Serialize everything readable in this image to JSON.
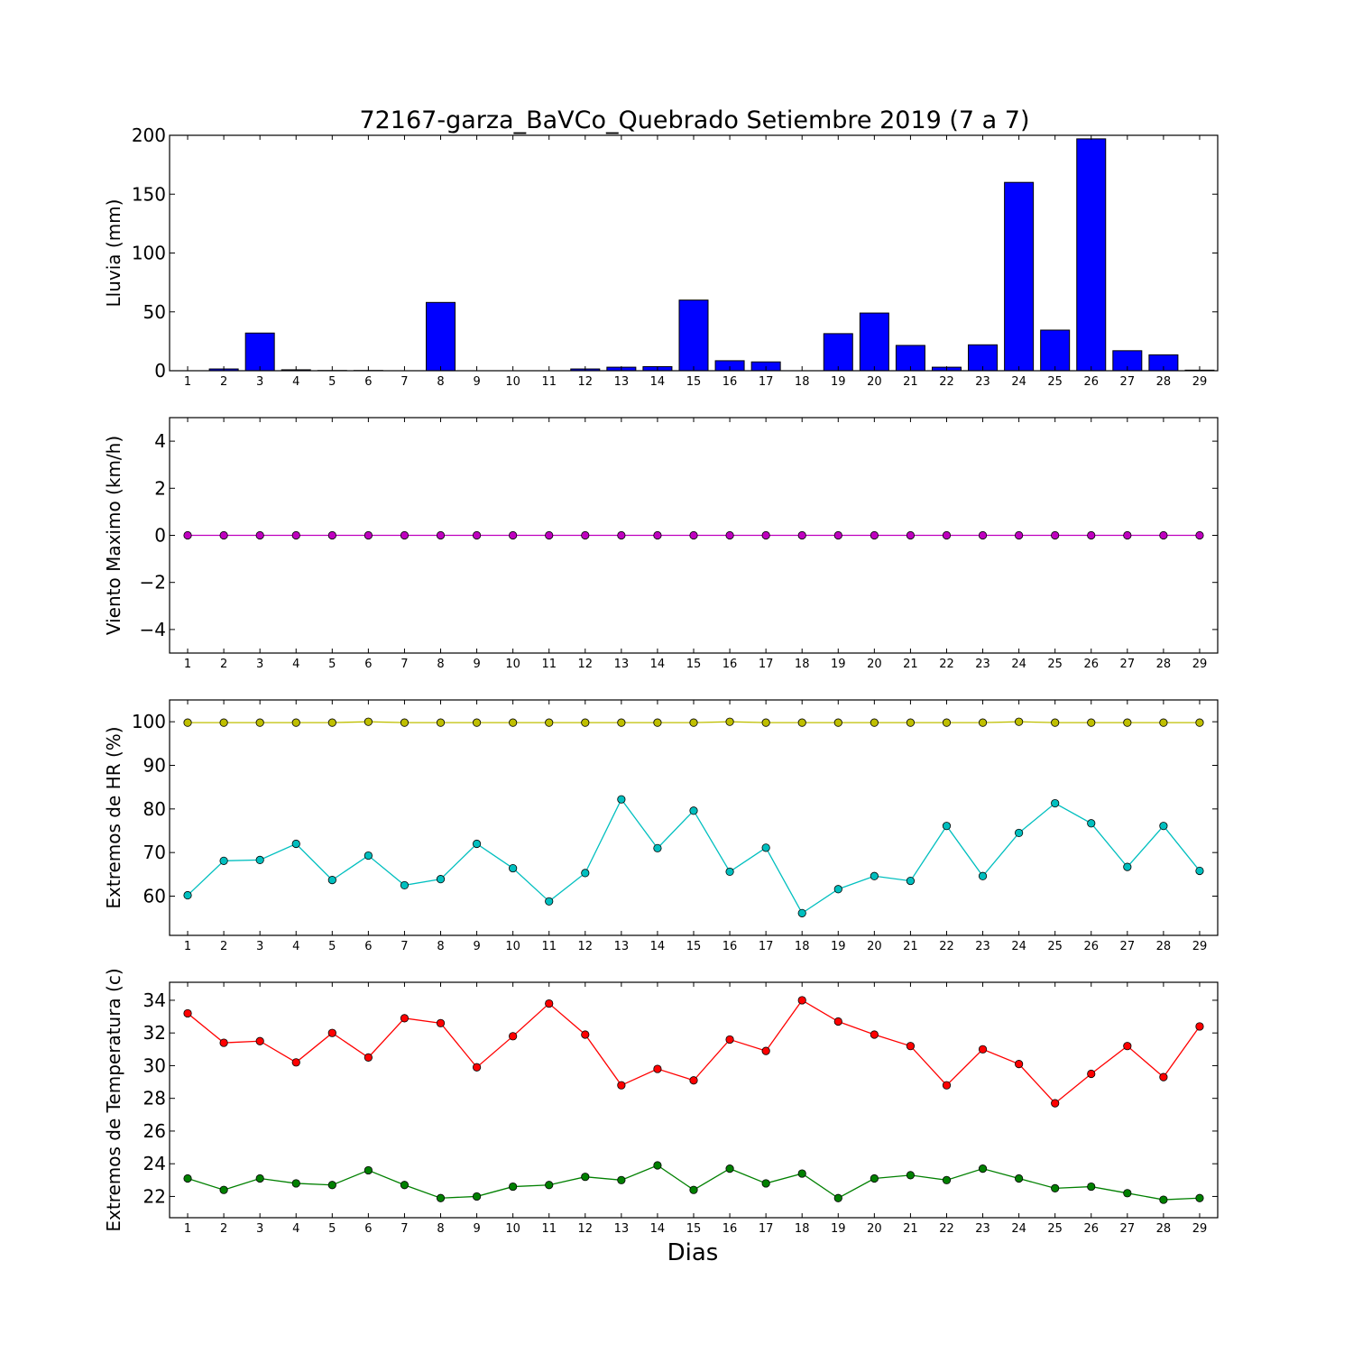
{
  "chart_data": [
    {
      "type": "bar",
      "title": "72167-garza_BaVCo_Quebrado Setiembre 2019  (7 a 7)",
      "ylabel": "Lluvia (mm)",
      "ylim": [
        0,
        200
      ],
      "yticks": [
        0,
        50,
        100,
        150,
        200
      ],
      "x": [
        1,
        2,
        3,
        4,
        5,
        6,
        7,
        8,
        9,
        10,
        11,
        12,
        13,
        14,
        15,
        16,
        17,
        18,
        19,
        20,
        21,
        22,
        23,
        24,
        25,
        26,
        27,
        28,
        29
      ],
      "series": [
        {
          "values": [
            0,
            1.5,
            32,
            0.8,
            0.2,
            0.2,
            0,
            58,
            0,
            0,
            0,
            1.5,
            3,
            3.5,
            60,
            8.5,
            7.5,
            0,
            31.5,
            49,
            21.5,
            3,
            22,
            160,
            34.5,
            197,
            17,
            13.5,
            0.5
          ],
          "color": "#0000ff"
        }
      ]
    },
    {
      "type": "line",
      "ylabel": "Viento Maximo (km/h)",
      "ylim": [
        -5,
        5
      ],
      "yticks": [
        -4,
        -2,
        0,
        2,
        4
      ],
      "x": [
        1,
        2,
        3,
        4,
        5,
        6,
        7,
        8,
        9,
        10,
        11,
        12,
        13,
        14,
        15,
        16,
        17,
        18,
        19,
        20,
        21,
        22,
        23,
        24,
        25,
        26,
        27,
        28,
        29
      ],
      "series": [
        {
          "values": [
            0,
            0,
            0,
            0,
            0,
            0,
            0,
            0,
            0,
            0,
            0,
            0,
            0,
            0,
            0,
            0,
            0,
            0,
            0,
            0,
            0,
            0,
            0,
            0,
            0,
            0,
            0,
            0,
            0
          ],
          "color": "#bf00bf"
        }
      ]
    },
    {
      "type": "line",
      "ylabel": "Extremos de HR (%)",
      "ylim": [
        51,
        105
      ],
      "yticks": [
        60,
        70,
        80,
        90,
        100
      ],
      "x": [
        1,
        2,
        3,
        4,
        5,
        6,
        7,
        8,
        9,
        10,
        11,
        12,
        13,
        14,
        15,
        16,
        17,
        18,
        19,
        20,
        21,
        22,
        23,
        24,
        25,
        26,
        27,
        28,
        29
      ],
      "series": [
        {
          "values": [
            99.8,
            99.8,
            99.8,
            99.8,
            99.8,
            100,
            99.8,
            99.8,
            99.8,
            99.8,
            99.8,
            99.8,
            99.8,
            99.8,
            99.8,
            100,
            99.8,
            99.8,
            99.8,
            99.8,
            99.8,
            99.8,
            99.8,
            100,
            99.8,
            99.8,
            99.8,
            99.8,
            99.8
          ],
          "color": "#bfbf00"
        },
        {
          "values": [
            60.2,
            68.1,
            68.3,
            72,
            63.7,
            69.3,
            62.5,
            63.9,
            72,
            66.4,
            58.8,
            65.3,
            82.2,
            71,
            79.6,
            65.6,
            71.1,
            56.1,
            61.6,
            64.6,
            63.5,
            76.1,
            64.6,
            74.5,
            81.3,
            76.7,
            66.7,
            76.1,
            65.8
          ],
          "color": "#00bfbf"
        }
      ]
    },
    {
      "type": "line",
      "ylabel": "Extremos de Temperatura (c)",
      "xlabel": "Dias",
      "ylim": [
        20.7,
        35.1
      ],
      "yticks": [
        22,
        24,
        26,
        28,
        30,
        32,
        34
      ],
      "x": [
        1,
        2,
        3,
        4,
        5,
        6,
        7,
        8,
        9,
        10,
        11,
        12,
        13,
        14,
        15,
        16,
        17,
        18,
        19,
        20,
        21,
        22,
        23,
        24,
        25,
        26,
        27,
        28,
        29
      ],
      "series": [
        {
          "values": [
            33.2,
            31.4,
            31.5,
            30.2,
            32,
            30.5,
            32.9,
            32.6,
            29.9,
            31.8,
            33.8,
            31.9,
            28.8,
            29.8,
            29.1,
            31.6,
            30.9,
            34,
            32.7,
            31.9,
            31.2,
            28.8,
            31,
            30.1,
            27.7,
            29.5,
            31.2,
            29.3,
            32.4
          ],
          "color": "#ff0000"
        },
        {
          "values": [
            23.1,
            22.4,
            23.1,
            22.8,
            22.7,
            23.6,
            22.7,
            21.9,
            22,
            22.6,
            22.7,
            23.2,
            23,
            23.9,
            22.4,
            23.7,
            22.8,
            23.4,
            21.9,
            23.1,
            23.3,
            23,
            23.7,
            23.1,
            22.5,
            22.6,
            22.2,
            21.8,
            21.9
          ],
          "color": "#008000"
        }
      ]
    }
  ]
}
